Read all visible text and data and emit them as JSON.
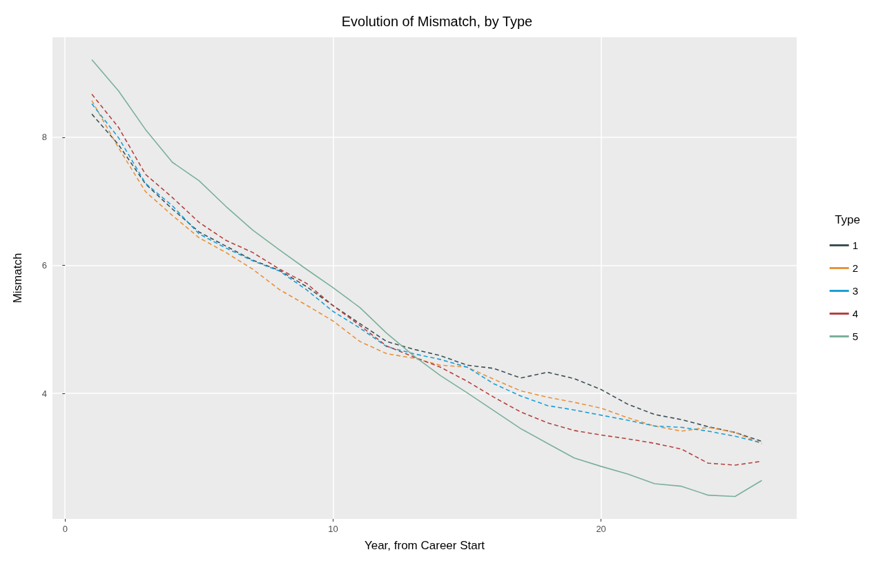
{
  "chart_data": {
    "type": "line",
    "title": "Evolution of Mismatch, by Type",
    "xlabel": "Year, from Career Start",
    "ylabel": "Mismatch",
    "legend_title": "Type",
    "legend": "right",
    "grid": true,
    "marker": "none",
    "xlim": [
      -0.47,
      27.3
    ],
    "xticks": [
      0,
      10,
      20
    ],
    "ylim": [
      2.04,
      9.56
    ],
    "yticks": [
      4,
      6,
      8
    ],
    "x": [
      1,
      2,
      3,
      4,
      5,
      6,
      7,
      8,
      9,
      10,
      11,
      12,
      13,
      14,
      15,
      16,
      17,
      18,
      19,
      20,
      21,
      22,
      23,
      24,
      25,
      26
    ],
    "series": [
      {
        "name": "1",
        "color": "#3d4f55",
        "line_style": "dashed",
        "values": [
          8.36,
          7.88,
          7.27,
          6.88,
          6.52,
          6.3,
          6.08,
          5.92,
          5.67,
          5.37,
          5.09,
          4.81,
          4.69,
          4.59,
          4.44,
          4.39,
          4.24,
          4.33,
          4.23,
          4.06,
          3.83,
          3.67,
          3.59,
          3.48,
          3.39,
          3.25
        ]
      },
      {
        "name": "2",
        "color": "#e8923a",
        "line_style": "dashed",
        "values": [
          8.57,
          7.83,
          7.15,
          6.78,
          6.43,
          6.2,
          5.94,
          5.62,
          5.38,
          5.13,
          4.81,
          4.62,
          4.55,
          4.44,
          4.41,
          4.22,
          4.04,
          3.94,
          3.86,
          3.77,
          3.62,
          3.49,
          3.41,
          3.47,
          3.39,
          3.21
        ]
      },
      {
        "name": "3",
        "color": "#1a9fd6",
        "line_style": "dashed",
        "values": [
          8.52,
          7.99,
          7.28,
          6.93,
          6.49,
          6.27,
          6.07,
          5.91,
          5.62,
          5.28,
          5.02,
          4.73,
          4.62,
          4.53,
          4.41,
          4.15,
          3.96,
          3.81,
          3.74,
          3.66,
          3.58,
          3.49,
          3.47,
          3.41,
          3.33,
          3.23
        ]
      },
      {
        "name": "4",
        "color": "#b5413f",
        "line_style": "dashed",
        "values": [
          8.67,
          8.15,
          7.42,
          7.06,
          6.67,
          6.39,
          6.2,
          5.94,
          5.72,
          5.37,
          5.06,
          4.74,
          4.57,
          4.41,
          4.19,
          3.94,
          3.71,
          3.54,
          3.42,
          3.35,
          3.29,
          3.22,
          3.13,
          2.91,
          2.88,
          2.94
        ]
      },
      {
        "name": "5",
        "color": "#79b09a",
        "line_style": "solid",
        "values": [
          9.21,
          8.72,
          8.12,
          7.61,
          7.32,
          6.92,
          6.55,
          6.24,
          5.94,
          5.65,
          5.34,
          4.94,
          4.59,
          4.28,
          4.01,
          3.73,
          3.45,
          3.22,
          2.99,
          2.86,
          2.74,
          2.59,
          2.55,
          2.41,
          2.39,
          2.64
        ]
      }
    ]
  }
}
